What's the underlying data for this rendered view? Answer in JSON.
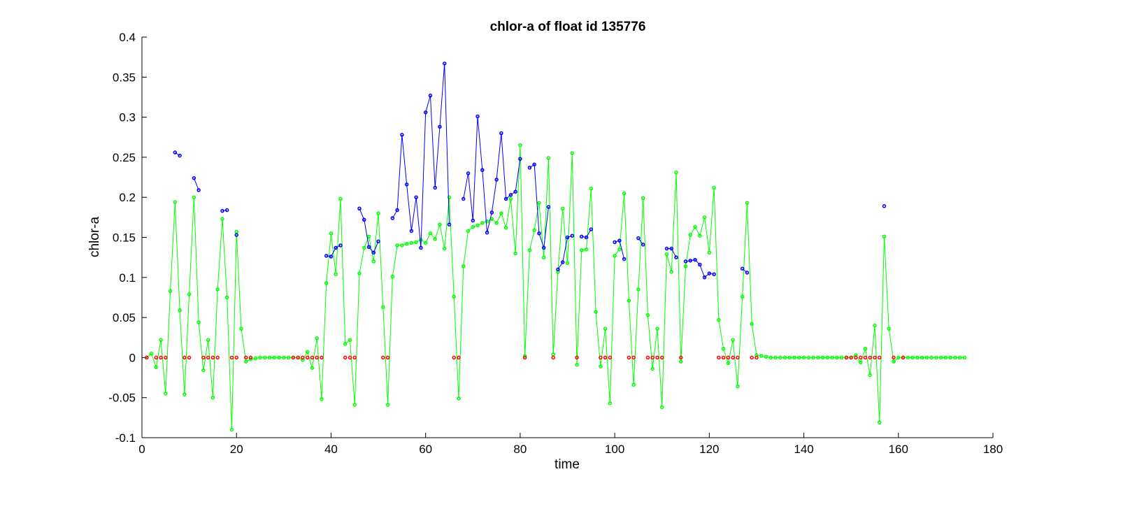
{
  "chart_data": {
    "type": "line",
    "title": "chlor-a of float id 135776",
    "xlabel": "time",
    "ylabel": "chlor-a",
    "xlim": [
      0,
      180
    ],
    "ylim": [
      -0.1,
      0.4
    ],
    "xticks": [
      0,
      20,
      40,
      60,
      80,
      100,
      120,
      140,
      160,
      180
    ],
    "yticks": [
      -0.1,
      -0.05,
      0,
      0.05,
      0.1,
      0.15,
      0.2,
      0.25,
      0.3,
      0.35,
      0.4
    ],
    "xtick_labels": [
      "0",
      "20",
      "40",
      "60",
      "80",
      "100",
      "120",
      "140",
      "160",
      "180"
    ],
    "ytick_labels": [
      "-0.1",
      "-0.05",
      "0",
      "0.05",
      "0.1",
      "0.15",
      "0.2",
      "0.25",
      "0.3",
      "0.35",
      "0.4"
    ],
    "grid": false,
    "legend": "none",
    "colors": {
      "green": "#00ff00",
      "blue": "#0000ff",
      "red": "#ff0000"
    },
    "series": [
      {
        "color": "green",
        "connect": "line",
        "points": [
          [
            1,
            0
          ],
          [
            2,
            0.005
          ],
          [
            3,
            -0.012
          ],
          [
            4,
            0.022
          ],
          [
            5,
            -0.045
          ],
          [
            6,
            0.083
          ],
          [
            7,
            0.194
          ],
          [
            8,
            0.059
          ],
          [
            9,
            -0.046
          ],
          [
            10,
            0.079
          ],
          [
            11,
            0.2
          ],
          [
            12,
            0.044
          ],
          [
            13,
            -0.016
          ],
          [
            14,
            0.022
          ],
          [
            15,
            -0.05
          ],
          [
            16,
            0.085
          ],
          [
            17,
            0.173
          ],
          [
            18,
            0.075
          ],
          [
            19,
            -0.09
          ],
          [
            20,
            0.157
          ],
          [
            21,
            0.036
          ],
          [
            22,
            -0.005
          ],
          [
            23,
            -0.002
          ],
          [
            24,
            -0.001
          ],
          [
            25,
            0
          ],
          [
            26,
            0
          ],
          [
            27,
            0
          ],
          [
            28,
            0
          ],
          [
            29,
            0
          ],
          [
            30,
            0
          ],
          [
            31,
            0
          ],
          [
            32,
            0
          ],
          [
            33,
            0
          ],
          [
            34,
            -0.003
          ],
          [
            35,
            0.007
          ],
          [
            36,
            -0.013
          ],
          [
            37,
            0.024
          ],
          [
            38,
            -0.052
          ],
          [
            39,
            0.093
          ],
          [
            40,
            0.155
          ],
          [
            41,
            0.104
          ],
          [
            42,
            0.198
          ],
          [
            43,
            0.017
          ],
          [
            44,
            0.022
          ],
          [
            45,
            -0.059
          ],
          [
            46,
            0.105
          ],
          [
            47,
            0.137
          ],
          [
            48,
            0.151
          ],
          [
            49,
            0.12
          ],
          [
            50,
            0.18
          ],
          [
            51,
            0.063
          ],
          [
            52,
            -0.059
          ],
          [
            53,
            0.101
          ],
          [
            54,
            0.14
          ],
          [
            55,
            0.14
          ],
          [
            56,
            0.142
          ],
          [
            57,
            0.143
          ],
          [
            58,
            0.144
          ],
          [
            59,
            0.147
          ],
          [
            60,
            0.143
          ],
          [
            61,
            0.155
          ],
          [
            62,
            0.148
          ],
          [
            63,
            0.166
          ],
          [
            64,
            0.136
          ],
          [
            65,
            0.2
          ],
          [
            66,
            0.076
          ],
          [
            67,
            -0.051
          ],
          [
            68,
            0.114
          ],
          [
            69,
            0.158
          ],
          [
            70,
            0.163
          ],
          [
            71,
            0.165
          ],
          [
            72,
            0.168
          ],
          [
            73,
            0.17
          ],
          [
            74,
            0.173
          ],
          [
            75,
            0.168
          ],
          [
            76,
            0.18
          ],
          [
            77,
            0.162
          ],
          [
            78,
            0.198
          ],
          [
            79,
            0.13
          ],
          [
            80,
            0.265
          ],
          [
            81,
            0.002
          ],
          [
            82,
            0.134
          ],
          [
            83,
            0.159
          ],
          [
            84,
            0.193
          ],
          [
            85,
            0.125
          ],
          [
            86,
            0.249
          ],
          [
            87,
            0.004
          ],
          [
            88,
            0.107
          ],
          [
            89,
            0.186
          ],
          [
            90,
            0.118
          ],
          [
            91,
            0.255
          ],
          [
            92,
            -0.009
          ],
          [
            93,
            0.134
          ],
          [
            94,
            0.135
          ],
          [
            95,
            0.211
          ],
          [
            96,
            0.057
          ],
          [
            97,
            -0.011
          ],
          [
            98,
            0.036
          ],
          [
            99,
            -0.057
          ],
          [
            100,
            0.127
          ],
          [
            101,
            0.135
          ],
          [
            102,
            0.205
          ],
          [
            103,
            0.071
          ],
          [
            104,
            -0.034
          ],
          [
            105,
            0.085
          ],
          [
            106,
            0.199
          ],
          [
            107,
            0.053
          ],
          [
            108,
            -0.014
          ],
          [
            109,
            0.036
          ],
          [
            110,
            -0.062
          ],
          [
            111,
            0.129
          ],
          [
            112,
            0.107
          ],
          [
            113,
            0.231
          ],
          [
            114,
            -0.005
          ],
          [
            115,
            0.114
          ],
          [
            116,
            0.153
          ],
          [
            117,
            0.163
          ],
          [
            118,
            0.152
          ],
          [
            119,
            0.175
          ],
          [
            120,
            0.131
          ],
          [
            121,
            0.212
          ],
          [
            122,
            0.047
          ],
          [
            123,
            0.011
          ],
          [
            124,
            -0.007
          ],
          [
            125,
            0.022
          ],
          [
            126,
            -0.036
          ],
          [
            127,
            0.076
          ],
          [
            128,
            0.193
          ],
          [
            129,
            0.042
          ],
          [
            130,
            0.003
          ],
          [
            131,
            0.002
          ],
          [
            132,
            0.001
          ],
          [
            133,
            0
          ],
          [
            134,
            0
          ],
          [
            135,
            0
          ],
          [
            136,
            0
          ],
          [
            137,
            0
          ],
          [
            138,
            0
          ],
          [
            139,
            0
          ],
          [
            140,
            0
          ],
          [
            141,
            0
          ],
          [
            142,
            0
          ],
          [
            143,
            0
          ],
          [
            144,
            0
          ],
          [
            145,
            0
          ],
          [
            146,
            0
          ],
          [
            147,
            0
          ],
          [
            148,
            0
          ],
          [
            149,
            0
          ],
          [
            150,
            0
          ],
          [
            151,
            0.003
          ],
          [
            152,
            -0.006
          ],
          [
            153,
            0.011
          ],
          [
            154,
            -0.022
          ],
          [
            155,
            0.04
          ],
          [
            156,
            -0.081
          ],
          [
            157,
            0.151
          ],
          [
            158,
            0.036
          ],
          [
            159,
            -0.005
          ],
          [
            160,
            0
          ],
          [
            161,
            0
          ],
          [
            162,
            0
          ],
          [
            163,
            0
          ],
          [
            164,
            0
          ],
          [
            165,
            0
          ],
          [
            166,
            0
          ],
          [
            167,
            0
          ],
          [
            168,
            0
          ],
          [
            169,
            0
          ],
          [
            170,
            0
          ],
          [
            171,
            0
          ],
          [
            172,
            0
          ],
          [
            173,
            0
          ],
          [
            174,
            0
          ]
        ]
      },
      {
        "color": "blue",
        "connect": "segments",
        "segments": [
          [
            [
              7,
              0.256
            ],
            [
              8,
              0.252
            ]
          ],
          [
            [
              11,
              0.224
            ],
            [
              12,
              0.209
            ]
          ],
          [
            [
              17,
              0.183
            ],
            [
              18,
              0.184
            ]
          ],
          [
            [
              20,
              0.153
            ]
          ],
          [
            [
              39,
              0.127
            ],
            [
              40,
              0.126
            ],
            [
              41,
              0.137
            ],
            [
              42,
              0.14
            ]
          ],
          [
            [
              46,
              0.186
            ],
            [
              47,
              0.172
            ],
            [
              48,
              0.138
            ],
            [
              49,
              0.131
            ],
            [
              50,
              0.145
            ]
          ],
          [
            [
              53,
              0.174
            ],
            [
              54,
              0.184
            ],
            [
              55,
              0.278
            ],
            [
              56,
              0.216
            ],
            [
              57,
              0.158
            ],
            [
              58,
              0.2
            ],
            [
              59,
              0.137
            ],
            [
              60,
              0.306
            ],
            [
              61,
              0.327
            ],
            [
              62,
              0.212
            ],
            [
              63,
              0.288
            ],
            [
              64,
              0.367
            ],
            [
              65,
              0.166
            ]
          ],
          [
            [
              68,
              0.198
            ],
            [
              69,
              0.23
            ],
            [
              70,
              0.171
            ],
            [
              71,
              0.301
            ],
            [
              72,
              0.234
            ],
            [
              73,
              0.156
            ],
            [
              74,
              0.181
            ],
            [
              75,
              0.222
            ],
            [
              76,
              0.28
            ],
            [
              77,
              0.198
            ],
            [
              78,
              0.203
            ],
            [
              79,
              0.207
            ],
            [
              80,
              0.248
            ]
          ],
          [
            [
              82,
              0.237
            ],
            [
              83,
              0.241
            ],
            [
              84,
              0.155
            ],
            [
              85,
              0.137
            ],
            [
              86,
              0.188
            ]
          ],
          [
            [
              88,
              0.11
            ],
            [
              89,
              0.119
            ],
            [
              90,
              0.15
            ],
            [
              91,
              0.152
            ]
          ],
          [
            [
              93,
              0.151
            ],
            [
              94,
              0.15
            ],
            [
              95,
              0.16
            ]
          ],
          [
            [
              100,
              0.144
            ],
            [
              101,
              0.146
            ],
            [
              102,
              0.123
            ]
          ],
          [
            [
              105,
              0.149
            ],
            [
              106,
              0.141
            ]
          ],
          [
            [
              111,
              0.136
            ],
            [
              112,
              0.136
            ],
            [
              113,
              0.125
            ]
          ],
          [
            [
              115,
              0.12
            ],
            [
              116,
              0.121
            ],
            [
              117,
              0.122
            ],
            [
              118,
              0.116
            ],
            [
              119,
              0.1
            ],
            [
              120,
              0.105
            ],
            [
              121,
              0.104
            ]
          ],
          [
            [
              127,
              0.111
            ],
            [
              128,
              0.106
            ]
          ],
          [
            [
              157,
              0.189
            ]
          ]
        ]
      },
      {
        "color": "red",
        "connect": "none",
        "points": [
          [
            1,
            0
          ],
          [
            3,
            0
          ],
          [
            4,
            0
          ],
          [
            5,
            0
          ],
          [
            9,
            0
          ],
          [
            10,
            0
          ],
          [
            13,
            0
          ],
          [
            14,
            0
          ],
          [
            15,
            0
          ],
          [
            16,
            0
          ],
          [
            19,
            0
          ],
          [
            20,
            0
          ],
          [
            22,
            0
          ],
          [
            23,
            0
          ],
          [
            32,
            0
          ],
          [
            33,
            0
          ],
          [
            34,
            0
          ],
          [
            35,
            0
          ],
          [
            36,
            0
          ],
          [
            37,
            0
          ],
          [
            38,
            0
          ],
          [
            43,
            0
          ],
          [
            44,
            0
          ],
          [
            45,
            0
          ],
          [
            51,
            0
          ],
          [
            52,
            0
          ],
          [
            66,
            0
          ],
          [
            67,
            0
          ],
          [
            81,
            0
          ],
          [
            87,
            0
          ],
          [
            92,
            0
          ],
          [
            97,
            0
          ],
          [
            98,
            0
          ],
          [
            99,
            0
          ],
          [
            103,
            0
          ],
          [
            104,
            0
          ],
          [
            107,
            0
          ],
          [
            108,
            0
          ],
          [
            109,
            0
          ],
          [
            110,
            0
          ],
          [
            114,
            0
          ],
          [
            122,
            0
          ],
          [
            123,
            0
          ],
          [
            124,
            0
          ],
          [
            125,
            0
          ],
          [
            126,
            0
          ],
          [
            129,
            0
          ],
          [
            130,
            0
          ],
          [
            149,
            0
          ],
          [
            150,
            0
          ],
          [
            151,
            0
          ],
          [
            152,
            0
          ],
          [
            153,
            0
          ],
          [
            154,
            0
          ],
          [
            155,
            0
          ],
          [
            156,
            0
          ],
          [
            159,
            0
          ],
          [
            161,
            0
          ]
        ]
      }
    ]
  }
}
